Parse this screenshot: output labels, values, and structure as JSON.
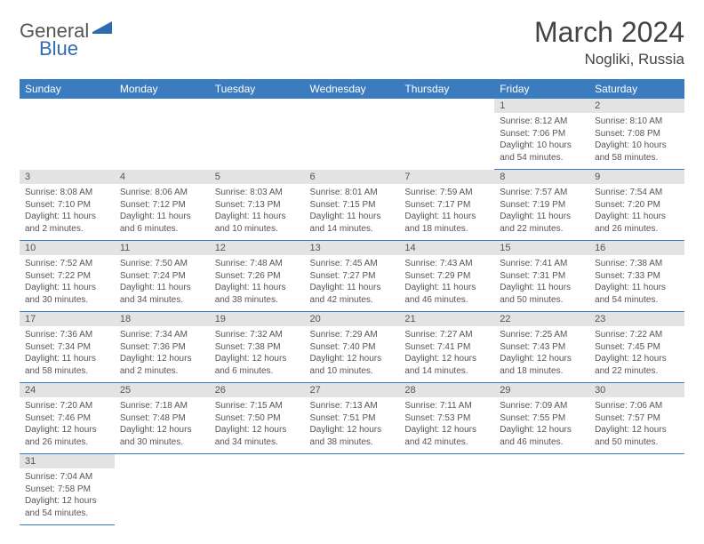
{
  "logo": {
    "part1": "General",
    "part2": "Blue"
  },
  "title": "March 2024",
  "location": "Nogliki, Russia",
  "colors": {
    "header_bg": "#3b7bbf",
    "header_text": "#ffffff",
    "daynum_bg": "#e3e3e3",
    "border": "#3b7bbf",
    "text": "#555555",
    "logo_blue": "#2e6bb0"
  },
  "weekdays": [
    "Sunday",
    "Monday",
    "Tuesday",
    "Wednesday",
    "Thursday",
    "Friday",
    "Saturday"
  ],
  "weeks": [
    [
      null,
      null,
      null,
      null,
      null,
      {
        "d": "1",
        "sr": "Sunrise: 8:12 AM",
        "ss": "Sunset: 7:06 PM",
        "dl1": "Daylight: 10 hours",
        "dl2": "and 54 minutes."
      },
      {
        "d": "2",
        "sr": "Sunrise: 8:10 AM",
        "ss": "Sunset: 7:08 PM",
        "dl1": "Daylight: 10 hours",
        "dl2": "and 58 minutes."
      }
    ],
    [
      {
        "d": "3",
        "sr": "Sunrise: 8:08 AM",
        "ss": "Sunset: 7:10 PM",
        "dl1": "Daylight: 11 hours",
        "dl2": "and 2 minutes."
      },
      {
        "d": "4",
        "sr": "Sunrise: 8:06 AM",
        "ss": "Sunset: 7:12 PM",
        "dl1": "Daylight: 11 hours",
        "dl2": "and 6 minutes."
      },
      {
        "d": "5",
        "sr": "Sunrise: 8:03 AM",
        "ss": "Sunset: 7:13 PM",
        "dl1": "Daylight: 11 hours",
        "dl2": "and 10 minutes."
      },
      {
        "d": "6",
        "sr": "Sunrise: 8:01 AM",
        "ss": "Sunset: 7:15 PM",
        "dl1": "Daylight: 11 hours",
        "dl2": "and 14 minutes."
      },
      {
        "d": "7",
        "sr": "Sunrise: 7:59 AM",
        "ss": "Sunset: 7:17 PM",
        "dl1": "Daylight: 11 hours",
        "dl2": "and 18 minutes."
      },
      {
        "d": "8",
        "sr": "Sunrise: 7:57 AM",
        "ss": "Sunset: 7:19 PM",
        "dl1": "Daylight: 11 hours",
        "dl2": "and 22 minutes."
      },
      {
        "d": "9",
        "sr": "Sunrise: 7:54 AM",
        "ss": "Sunset: 7:20 PM",
        "dl1": "Daylight: 11 hours",
        "dl2": "and 26 minutes."
      }
    ],
    [
      {
        "d": "10",
        "sr": "Sunrise: 7:52 AM",
        "ss": "Sunset: 7:22 PM",
        "dl1": "Daylight: 11 hours",
        "dl2": "and 30 minutes."
      },
      {
        "d": "11",
        "sr": "Sunrise: 7:50 AM",
        "ss": "Sunset: 7:24 PM",
        "dl1": "Daylight: 11 hours",
        "dl2": "and 34 minutes."
      },
      {
        "d": "12",
        "sr": "Sunrise: 7:48 AM",
        "ss": "Sunset: 7:26 PM",
        "dl1": "Daylight: 11 hours",
        "dl2": "and 38 minutes."
      },
      {
        "d": "13",
        "sr": "Sunrise: 7:45 AM",
        "ss": "Sunset: 7:27 PM",
        "dl1": "Daylight: 11 hours",
        "dl2": "and 42 minutes."
      },
      {
        "d": "14",
        "sr": "Sunrise: 7:43 AM",
        "ss": "Sunset: 7:29 PM",
        "dl1": "Daylight: 11 hours",
        "dl2": "and 46 minutes."
      },
      {
        "d": "15",
        "sr": "Sunrise: 7:41 AM",
        "ss": "Sunset: 7:31 PM",
        "dl1": "Daylight: 11 hours",
        "dl2": "and 50 minutes."
      },
      {
        "d": "16",
        "sr": "Sunrise: 7:38 AM",
        "ss": "Sunset: 7:33 PM",
        "dl1": "Daylight: 11 hours",
        "dl2": "and 54 minutes."
      }
    ],
    [
      {
        "d": "17",
        "sr": "Sunrise: 7:36 AM",
        "ss": "Sunset: 7:34 PM",
        "dl1": "Daylight: 11 hours",
        "dl2": "and 58 minutes."
      },
      {
        "d": "18",
        "sr": "Sunrise: 7:34 AM",
        "ss": "Sunset: 7:36 PM",
        "dl1": "Daylight: 12 hours",
        "dl2": "and 2 minutes."
      },
      {
        "d": "19",
        "sr": "Sunrise: 7:32 AM",
        "ss": "Sunset: 7:38 PM",
        "dl1": "Daylight: 12 hours",
        "dl2": "and 6 minutes."
      },
      {
        "d": "20",
        "sr": "Sunrise: 7:29 AM",
        "ss": "Sunset: 7:40 PM",
        "dl1": "Daylight: 12 hours",
        "dl2": "and 10 minutes."
      },
      {
        "d": "21",
        "sr": "Sunrise: 7:27 AM",
        "ss": "Sunset: 7:41 PM",
        "dl1": "Daylight: 12 hours",
        "dl2": "and 14 minutes."
      },
      {
        "d": "22",
        "sr": "Sunrise: 7:25 AM",
        "ss": "Sunset: 7:43 PM",
        "dl1": "Daylight: 12 hours",
        "dl2": "and 18 minutes."
      },
      {
        "d": "23",
        "sr": "Sunrise: 7:22 AM",
        "ss": "Sunset: 7:45 PM",
        "dl1": "Daylight: 12 hours",
        "dl2": "and 22 minutes."
      }
    ],
    [
      {
        "d": "24",
        "sr": "Sunrise: 7:20 AM",
        "ss": "Sunset: 7:46 PM",
        "dl1": "Daylight: 12 hours",
        "dl2": "and 26 minutes."
      },
      {
        "d": "25",
        "sr": "Sunrise: 7:18 AM",
        "ss": "Sunset: 7:48 PM",
        "dl1": "Daylight: 12 hours",
        "dl2": "and 30 minutes."
      },
      {
        "d": "26",
        "sr": "Sunrise: 7:15 AM",
        "ss": "Sunset: 7:50 PM",
        "dl1": "Daylight: 12 hours",
        "dl2": "and 34 minutes."
      },
      {
        "d": "27",
        "sr": "Sunrise: 7:13 AM",
        "ss": "Sunset: 7:51 PM",
        "dl1": "Daylight: 12 hours",
        "dl2": "and 38 minutes."
      },
      {
        "d": "28",
        "sr": "Sunrise: 7:11 AM",
        "ss": "Sunset: 7:53 PM",
        "dl1": "Daylight: 12 hours",
        "dl2": "and 42 minutes."
      },
      {
        "d": "29",
        "sr": "Sunrise: 7:09 AM",
        "ss": "Sunset: 7:55 PM",
        "dl1": "Daylight: 12 hours",
        "dl2": "and 46 minutes."
      },
      {
        "d": "30",
        "sr": "Sunrise: 7:06 AM",
        "ss": "Sunset: 7:57 PM",
        "dl1": "Daylight: 12 hours",
        "dl2": "and 50 minutes."
      }
    ],
    [
      {
        "d": "31",
        "sr": "Sunrise: 7:04 AM",
        "ss": "Sunset: 7:58 PM",
        "dl1": "Daylight: 12 hours",
        "dl2": "and 54 minutes."
      },
      null,
      null,
      null,
      null,
      null,
      null
    ]
  ]
}
